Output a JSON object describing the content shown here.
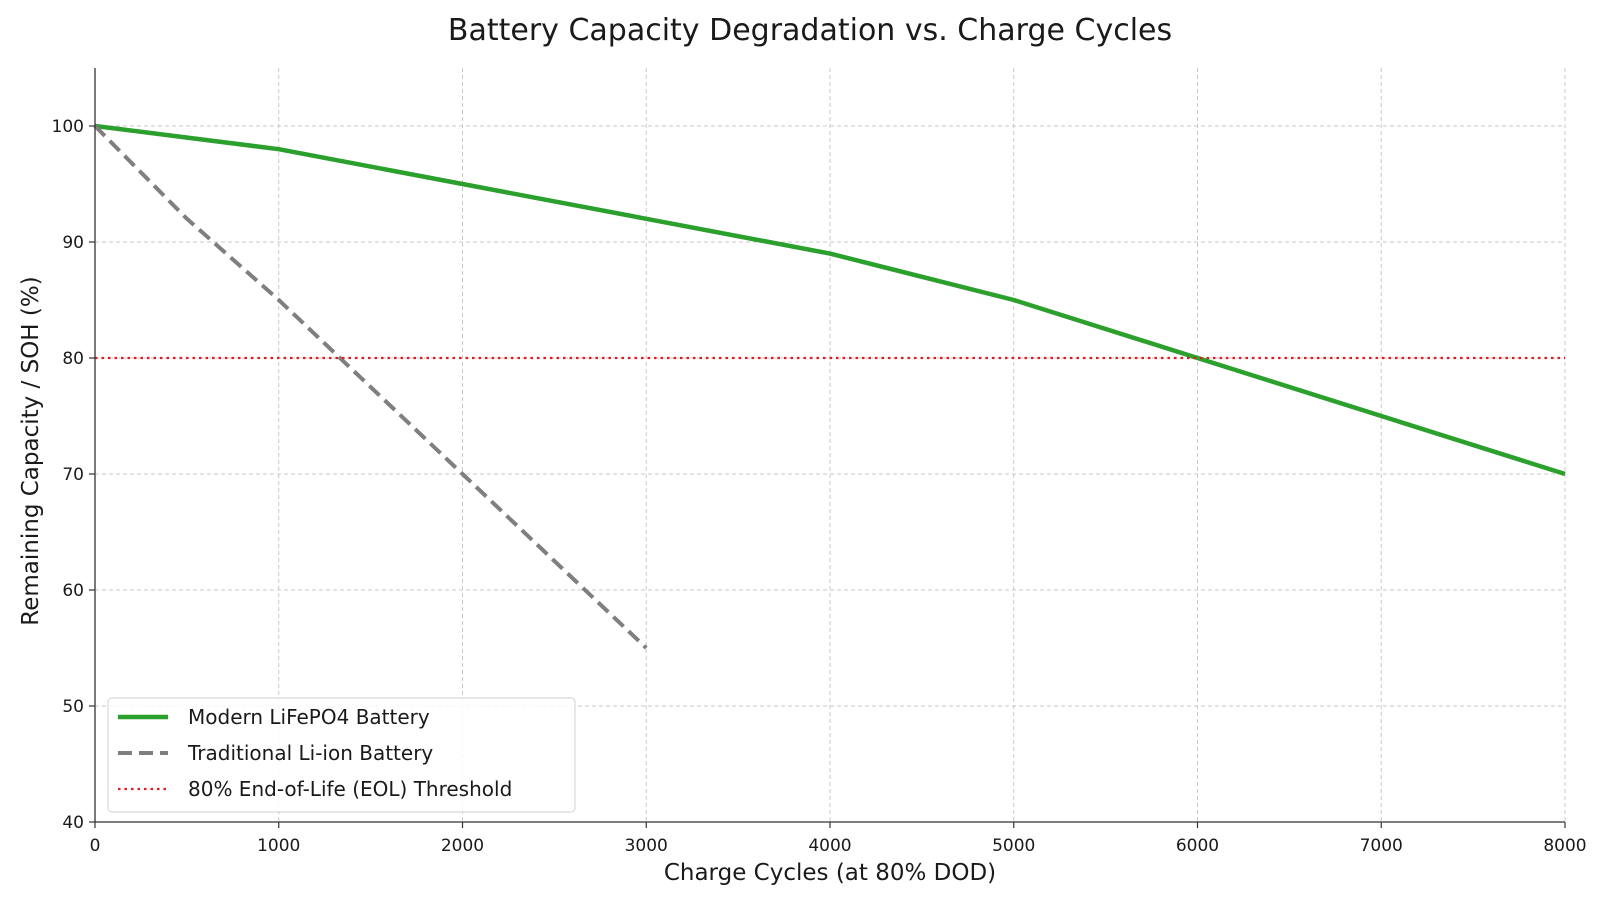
{
  "chart_data": {
    "type": "line",
    "title": "Battery Capacity Degradation vs. Charge Cycles",
    "xlabel": "Charge Cycles (at 80% DOD)",
    "ylabel": "Remaining Capacity / SOH (%)",
    "xlim": [
      0,
      8000
    ],
    "ylim": [
      40,
      105
    ],
    "xticks": [
      0,
      1000,
      2000,
      3000,
      4000,
      5000,
      6000,
      7000,
      8000
    ],
    "yticks": [
      40,
      50,
      60,
      70,
      80,
      90,
      100
    ],
    "grid": true,
    "legend_position": "lower-left",
    "series": [
      {
        "name": "Modern LiFePO4 Battery",
        "style": "solid",
        "color": "#2ca02c",
        "x": [
          0,
          1000,
          2000,
          3000,
          4000,
          5000,
          6000,
          7000,
          8000
        ],
        "y": [
          100,
          98,
          95,
          92,
          89,
          85,
          80,
          75,
          70
        ]
      },
      {
        "name": "Traditional Li-ion Battery",
        "style": "dashed",
        "color": "#7f7f7f",
        "x": [
          0,
          500,
          1000,
          1500,
          2000,
          2500,
          3000
        ],
        "y": [
          100,
          92,
          85,
          77.5,
          70,
          62.5,
          55
        ]
      },
      {
        "name": "80% End-of-Life (EOL) Threshold",
        "style": "dotted",
        "color": "#e31a1c",
        "x": [
          0,
          8000
        ],
        "y": [
          80,
          80
        ]
      }
    ]
  }
}
